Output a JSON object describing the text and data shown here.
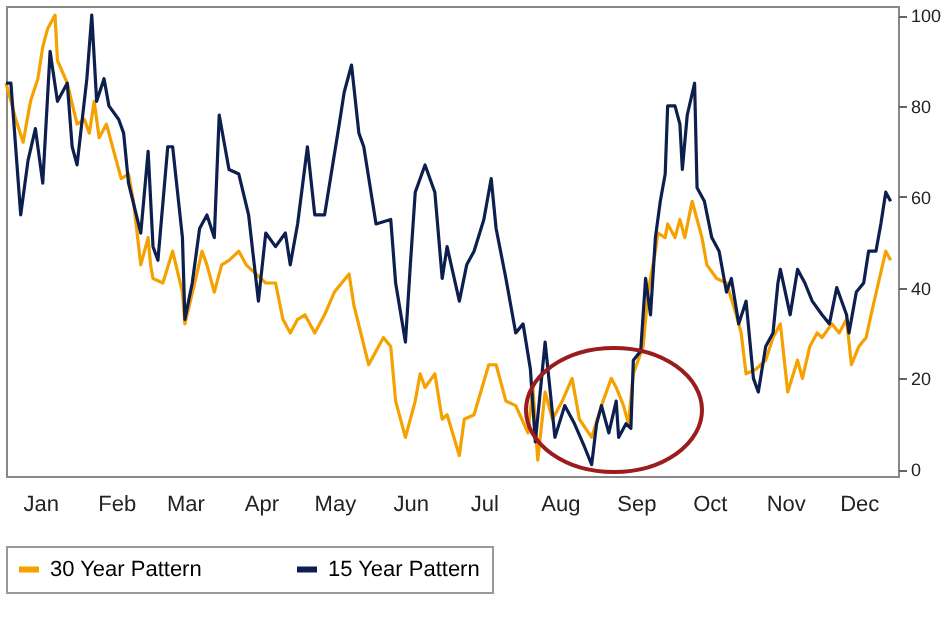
{
  "chart_data": {
    "type": "line",
    "xlim": [
      "--01-01",
      "--12-31"
    ],
    "ylim": [
      -1.5,
      102
    ],
    "xticks": [
      {
        "value": "--01-15",
        "label": "Jan"
      },
      {
        "value": "--02-15",
        "label": "Feb"
      },
      {
        "value": "--03-15",
        "label": "Mar"
      },
      {
        "value": "--04-15",
        "label": "Apr"
      },
      {
        "value": "--05-15",
        "label": "May"
      },
      {
        "value": "--06-15",
        "label": "Jun"
      },
      {
        "value": "--07-15",
        "label": "Jul"
      },
      {
        "value": "--08-15",
        "label": "Aug"
      },
      {
        "value": "--09-15",
        "label": "Sep"
      },
      {
        "value": "--10-15",
        "label": "Oct"
      },
      {
        "value": "--11-15",
        "label": "Nov"
      },
      {
        "value": "--12-15",
        "label": "Dec"
      }
    ],
    "yticks": [
      0,
      20,
      40,
      60,
      80,
      100
    ],
    "grid": false,
    "legend": "bottom",
    "marker": "none",
    "line_style": "solid",
    "series": [
      {
        "name": "30 Year Pattern",
        "color": "#f5a100",
        "x": [
          "--01-01",
          "--01-05",
          "--01-08",
          "--01-11",
          "--01-14",
          "--01-16",
          "--01-18",
          "--01-21",
          "--01-22",
          "--01-26",
          "--01-30",
          "--02-02",
          "--02-04",
          "--02-06",
          "--02-08",
          "--02-11",
          "--02-14",
          "--02-17",
          "--02-20",
          "--02-22",
          "--02-25",
          "--02-28",
          "--03-01",
          "--03-02",
          "--03-06",
          "--03-10",
          "--03-14",
          "--03-15",
          "--03-19",
          "--03-22",
          "--03-24",
          "--03-27",
          "--03-30",
          "--04-02",
          "--04-06",
          "--04-09",
          "--04-13",
          "--04-17",
          "--04-21",
          "--04-24",
          "--04-27",
          "--04-30",
          "--05-03",
          "--05-07",
          "--05-11",
          "--05-15",
          "--05-18",
          "--05-21",
          "--05-23",
          "--05-29",
          "--06-04",
          "--06-07",
          "--06-09",
          "--06-13",
          "--06-17",
          "--06-19",
          "--06-21",
          "--06-25",
          "--06-28",
          "--06-30",
          "--07-05",
          "--07-07",
          "--07-11",
          "--07-17",
          "--07-20",
          "--07-24",
          "--07-28",
          "--08-02",
          "--08-04",
          "--08-06",
          "--08-09",
          "--08-12",
          "--08-16",
          "--08-20",
          "--08-23",
          "--08-28",
          "--09-01",
          "--09-05",
          "--09-07",
          "--09-10",
          "--09-12",
          "--09-14",
          "--09-18",
          "--09-20",
          "--09-23",
          "--09-24",
          "--09-27",
          "--09-28",
          "--10-01",
          "--10-03",
          "--10-05",
          "--10-08",
          "--10-10",
          "--10-12",
          "--10-14",
          "--10-18",
          "--10-22",
          "--10-26",
          "--10-28",
          "--10-30",
          "--11-03",
          "--11-07",
          "--11-10",
          "--11-13",
          "--11-16",
          "--11-20",
          "--11-22",
          "--11-25",
          "--11-28",
          "--11-30",
          "--12-04",
          "--12-07",
          "--12-10",
          "--12-12",
          "--12-15",
          "--12-18",
          "--12-20",
          "--12-23",
          "--12-26",
          "--12-28"
        ],
        "values": [
          85,
          77,
          72,
          81,
          86,
          93,
          97,
          100,
          90,
          85,
          76,
          77,
          74,
          81,
          73,
          76,
          70,
          64,
          65,
          59,
          45,
          51,
          45,
          42,
          41,
          48,
          39,
          32,
          41,
          48,
          45,
          39,
          45,
          46,
          48,
          45,
          43,
          41,
          41,
          33,
          30,
          33,
          34,
          30,
          34,
          39,
          41,
          43,
          36,
          23,
          29,
          27,
          15,
          7,
          15,
          21,
          18,
          21,
          11,
          12,
          3,
          11,
          12,
          23,
          23,
          15,
          14,
          8,
          18,
          2,
          17,
          11,
          15,
          20,
          11,
          7,
          14,
          20,
          18,
          14,
          10,
          21,
          27,
          39,
          48,
          52,
          51,
          54,
          51,
          55,
          51,
          59,
          55,
          51,
          45,
          42,
          41,
          34,
          30,
          21,
          22,
          24,
          29,
          32,
          17,
          24,
          20,
          27,
          30,
          29,
          32,
          30,
          33,
          23,
          27,
          29,
          34,
          41,
          48,
          46
        ]
      },
      {
        "name": "15 Year Pattern",
        "color": "#0d1f4f",
        "x": [
          "--01-01",
          "--01-03",
          "--01-07",
          "--01-10",
          "--01-13",
          "--01-16",
          "--01-19",
          "--01-22",
          "--01-26",
          "--01-28",
          "--01-30",
          "--02-03",
          "--02-05",
          "--02-07",
          "--02-10",
          "--02-12",
          "--02-16",
          "--02-18",
          "--02-20",
          "--02-25",
          "--02-28",
          "--03-02",
          "--03-04",
          "--03-08",
          "--03-10",
          "--03-14",
          "--03-15",
          "--03-18",
          "--03-21",
          "--03-24",
          "--03-27",
          "--03-29",
          "--04-02",
          "--04-06",
          "--04-10",
          "--04-14",
          "--04-17",
          "--04-21",
          "--04-25",
          "--04-27",
          "--04-30",
          "--05-04",
          "--05-07",
          "--05-11",
          "--05-17",
          "--05-19",
          "--05-22",
          "--05-25",
          "--05-27",
          "--06-01",
          "--06-07",
          "--06-09",
          "--06-13",
          "--06-15",
          "--06-17",
          "--06-21",
          "--06-25",
          "--06-28",
          "--06-30",
          "--07-05",
          "--07-08",
          "--07-11",
          "--07-15",
          "--07-18",
          "--07-20",
          "--07-24",
          "--07-28",
          "--07-31",
          "--08-03",
          "--08-05",
          "--08-09",
          "--08-13",
          "--08-17",
          "--08-21",
          "--08-25",
          "--08-28",
          "--08-30",
          "--09-01",
          "--09-04",
          "--09-07",
          "--09-08",
          "--09-11",
          "--09-13",
          "--09-14",
          "--09-17",
          "--09-19",
          "--09-21",
          "--09-23",
          "--09-25",
          "--09-27",
          "--09-28",
          "--10-01",
          "--10-03",
          "--10-04",
          "--10-06",
          "--10-09",
          "--10-10",
          "--10-13",
          "--10-16",
          "--10-19",
          "--10-22",
          "--10-24",
          "--10-27",
          "--10-30",
          "--11-02",
          "--11-04",
          "--11-07",
          "--11-10",
          "--11-12",
          "--11-13",
          "--11-17",
          "--11-20",
          "--11-23",
          "--11-26",
          "--11-30",
          "--12-03",
          "--12-06",
          "--12-10",
          "--12-11",
          "--12-14",
          "--12-17",
          "--12-19",
          "--12-22",
          "--12-24",
          "--12-26",
          "--12-28"
        ],
        "values": [
          85,
          85,
          56,
          68,
          75,
          63,
          92,
          81,
          85,
          71,
          67,
          86,
          100,
          81,
          86,
          80,
          77,
          74,
          63,
          52,
          70,
          49,
          46,
          71,
          71,
          51,
          33,
          41,
          53,
          56,
          51,
          78,
          66,
          65,
          56,
          37,
          52,
          49,
          52,
          45,
          54,
          71,
          56,
          56,
          76,
          83,
          89,
          74,
          71,
          54,
          55,
          41,
          28,
          45,
          61,
          67,
          61,
          42,
          49,
          37,
          45,
          48,
          55,
          64,
          53,
          42,
          30,
          32,
          22,
          6,
          28,
          7,
          14,
          10,
          5,
          1,
          10,
          14,
          8,
          15,
          7,
          10,
          9,
          24,
          26,
          42,
          34,
          51,
          59,
          65,
          80,
          80,
          76,
          66,
          78,
          85,
          62,
          59,
          51,
          48,
          39,
          42,
          32,
          37,
          20,
          17,
          27,
          30,
          41,
          44,
          34,
          44,
          41,
          37,
          34,
          32,
          40,
          34,
          30,
          39,
          41,
          48,
          48,
          54,
          61,
          59
        ]
      }
    ]
  }
}
